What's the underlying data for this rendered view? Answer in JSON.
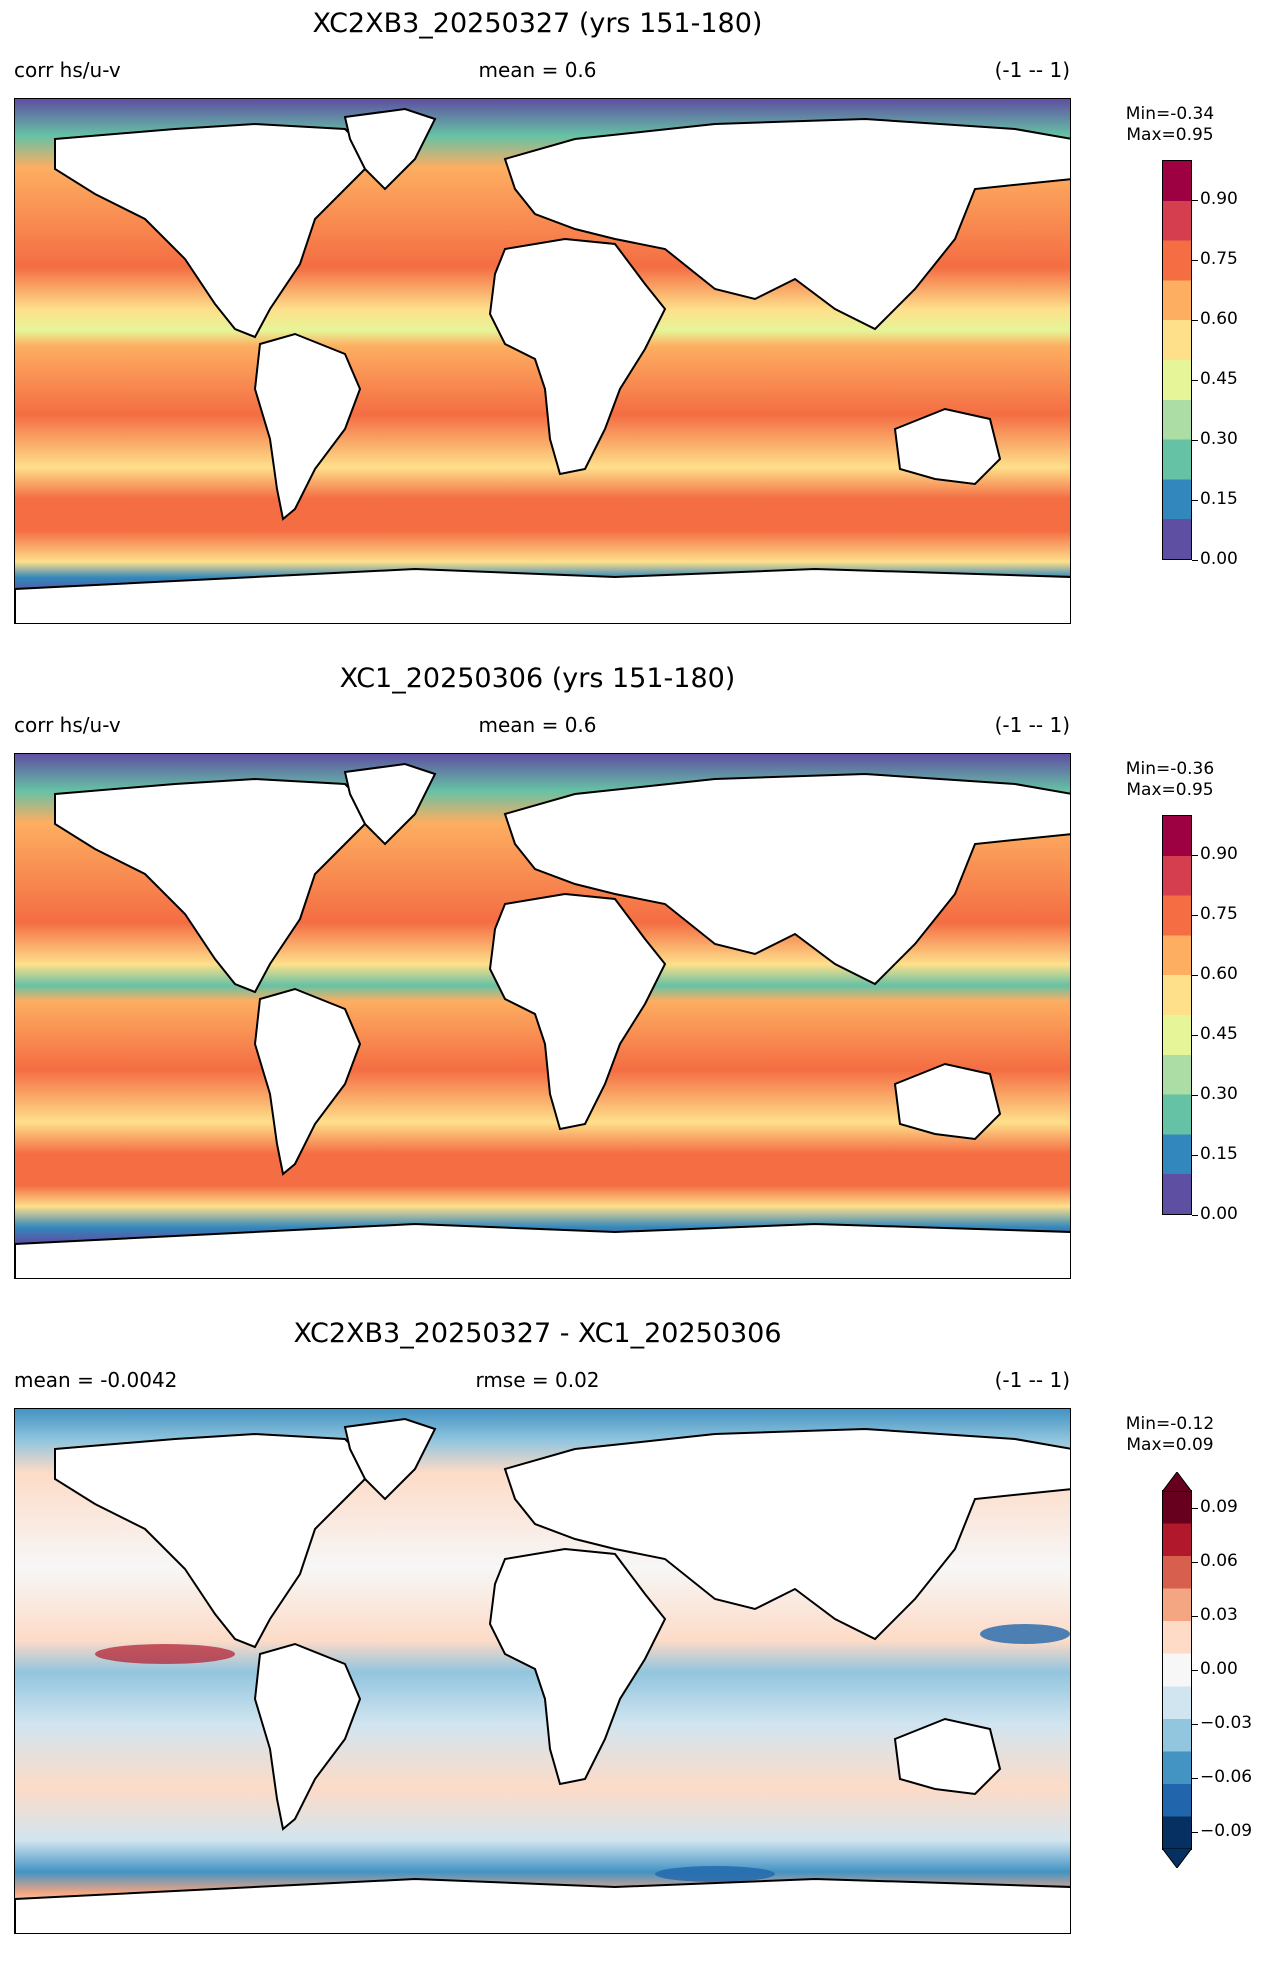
{
  "panels": [
    {
      "title": "XC2XB3_20250327 (yrs 151-180)",
      "left": "corr hs/u-v",
      "center": "mean = 0.6",
      "right": "(-1 -- 1)",
      "stats": [
        "Min=-0.34",
        "Max=0.95"
      ],
      "colorbar": {
        "ticks": [
          "0.90",
          "0.75",
          "0.60",
          "0.45",
          "0.30",
          "0.15",
          "0.00"
        ],
        "range": [
          0,
          1
        ],
        "extend": "none",
        "colormap": "RdYlBu_like"
      }
    },
    {
      "title": "XC1_20250306 (yrs 151-180)",
      "left": "corr hs/u-v",
      "center": "mean = 0.6",
      "right": "(-1 -- 1)",
      "stats": [
        "Min=-0.36",
        "Max=0.95"
      ],
      "colorbar": {
        "ticks": [
          "0.90",
          "0.75",
          "0.60",
          "0.45",
          "0.30",
          "0.15",
          "0.00"
        ],
        "range": [
          0,
          1
        ],
        "extend": "none",
        "colormap": "RdYlBu_like"
      }
    },
    {
      "title": "XC2XB3_20250327 - XC1_20250306",
      "left": "mean = -0.0042",
      "center": "rmse = 0.02",
      "right": "(-1 -- 1)",
      "stats": [
        "Min=-0.12",
        "Max=0.09"
      ],
      "colorbar": {
        "ticks": [
          "0.09",
          "0.06",
          "0.03",
          "0.00",
          "−0.03",
          "−0.06",
          "−0.09"
        ],
        "range": [
          -0.1,
          0.1
        ],
        "extend": "both",
        "colormap": "RdBu_r"
      }
    }
  ],
  "colors": {
    "land": "#ffffff",
    "coast": "#000000",
    "seq": [
      "#5e4fa2",
      "#3288bd",
      "#66c2a5",
      "#abdda4",
      "#e6f598",
      "#fee08b",
      "#fdae61",
      "#f46d43",
      "#d53e4f",
      "#9e0142"
    ],
    "div": [
      "#053061",
      "#2166ac",
      "#4393c3",
      "#92c5de",
      "#d1e5f0",
      "#f7f7f7",
      "#fddbc7",
      "#f4a582",
      "#d6604d",
      "#b2182b",
      "#67001f"
    ]
  }
}
